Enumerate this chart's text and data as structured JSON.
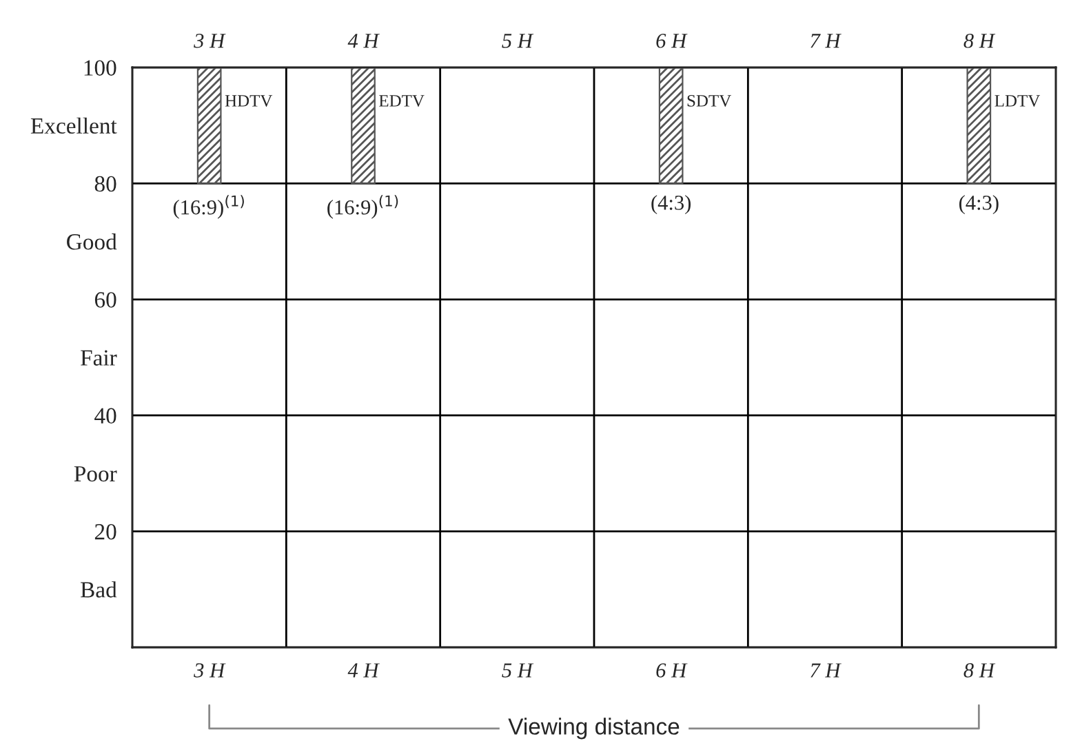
{
  "chart_data": {
    "type": "bar",
    "x": [
      3,
      4,
      6,
      8
    ],
    "values": [
      20,
      20,
      20,
      20
    ],
    "base": [
      80,
      80,
      80,
      80
    ],
    "color": "#555555",
    "xlabel": "Viewing distance",
    "xlim": [
      2.5,
      8.5
    ],
    "xticks": [
      {
        "value": 3,
        "label": "3 H"
      },
      {
        "value": 4,
        "label": "4 H"
      },
      {
        "value": 5,
        "label": "5 H"
      },
      {
        "value": 6,
        "label": "6 H"
      },
      {
        "value": 7,
        "label": "7 H"
      },
      {
        "value": 8,
        "label": "8 H"
      }
    ],
    "x2lim": [
      2.5,
      8.5
    ],
    "x2ticks": [
      {
        "value": 3,
        "label": "3 H"
      },
      {
        "value": 4,
        "label": "4 H"
      },
      {
        "value": 5,
        "label": "5 H"
      },
      {
        "value": 6,
        "label": "6 H"
      },
      {
        "value": 7,
        "label": "7 H"
      },
      {
        "value": 8,
        "label": "8 H"
      }
    ],
    "ylim": [
      0,
      100
    ],
    "yticks": [
      {
        "value": 10,
        "label": "Bad"
      },
      20,
      {
        "value": 30,
        "label": "Poor"
      },
      40,
      {
        "value": 50,
        "label": "Fair"
      },
      60,
      {
        "value": 70,
        "label": "Good"
      },
      80,
      {
        "value": 90,
        "label": "Excellent"
      },
      100
    ],
    "ref_lines": [
      {
        "axis": "x",
        "value": 3.5,
        "color": "#000000"
      },
      {
        "axis": "x",
        "value": 4.5,
        "color": "#000000"
      },
      {
        "axis": "x",
        "value": 5.5,
        "color": "#000000"
      },
      {
        "axis": "x",
        "value": 6.5,
        "color": "#000000"
      },
      {
        "axis": "x",
        "value": 7.5,
        "color": "#000000"
      },
      {
        "axis": "y",
        "value": 20,
        "color": "#000000"
      },
      {
        "axis": "y",
        "value": 40,
        "color": "#000000"
      },
      {
        "axis": "y",
        "value": 60,
        "color": "#000000"
      },
      {
        "axis": "y",
        "value": 80,
        "color": "#000000"
      }
    ],
    "annotations": [
      {
        "text": "HDTV",
        "x": 3,
        "y": 100
      },
      {
        "text": "EDTV",
        "x": 4,
        "y": 100
      },
      {
        "text": "SDTV",
        "x": 6,
        "y": 100
      },
      {
        "text": "LDTV",
        "x": 8,
        "y": 100
      },
      {
        "text": "(16:9)$^{(1)}$",
        "x": 3,
        "y": 80
      },
      {
        "text": "(16:9)$^{(1)}$",
        "x": 4,
        "y": 80
      },
      {
        "text": "(4:3)",
        "x": 6,
        "y": 80
      },
      {
        "text": "(4:3)",
        "x": 8,
        "y": 80
      }
    ],
    "grid": false,
    "legend": false
  }
}
